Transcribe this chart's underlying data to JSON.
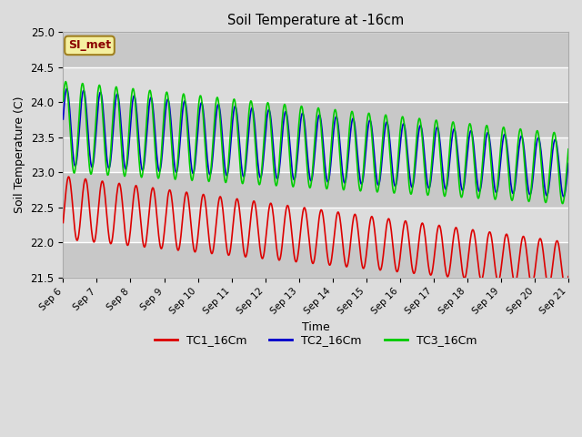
{
  "title": "Soil Temperature at -16cm",
  "xlabel": "Time",
  "ylabel": "Soil Temperature (C)",
  "ylim": [
    21.5,
    25.0
  ],
  "background_color": "#dcdcdc",
  "plot_bg_color": "#dcdcdc",
  "grid_color": "white",
  "legend_label": "SI_met",
  "series": {
    "TC1_16Cm": {
      "color": "#dd0000",
      "lw": 1.2
    },
    "TC2_16Cm": {
      "color": "#0000cc",
      "lw": 1.2
    },
    "TC3_16Cm": {
      "color": "#00cc00",
      "lw": 1.2
    }
  },
  "xtick_labels": [
    "Sep 6",
    "Sep 7",
    "Sep 8",
    "Sep 9",
    "Sep 10",
    "Sep 11",
    "Sep 12",
    "Sep 13",
    "Sep 14",
    "Sep 15",
    "Sep 16",
    "Sep 17",
    "Sep 18",
    "Sep 19",
    "Sep 20",
    "Sep 21"
  ],
  "ytick_labels": [
    21.5,
    22.0,
    22.5,
    23.0,
    23.5,
    24.0,
    24.5,
    25.0
  ],
  "figsize": [
    6.4,
    4.8
  ],
  "dpi": 100
}
